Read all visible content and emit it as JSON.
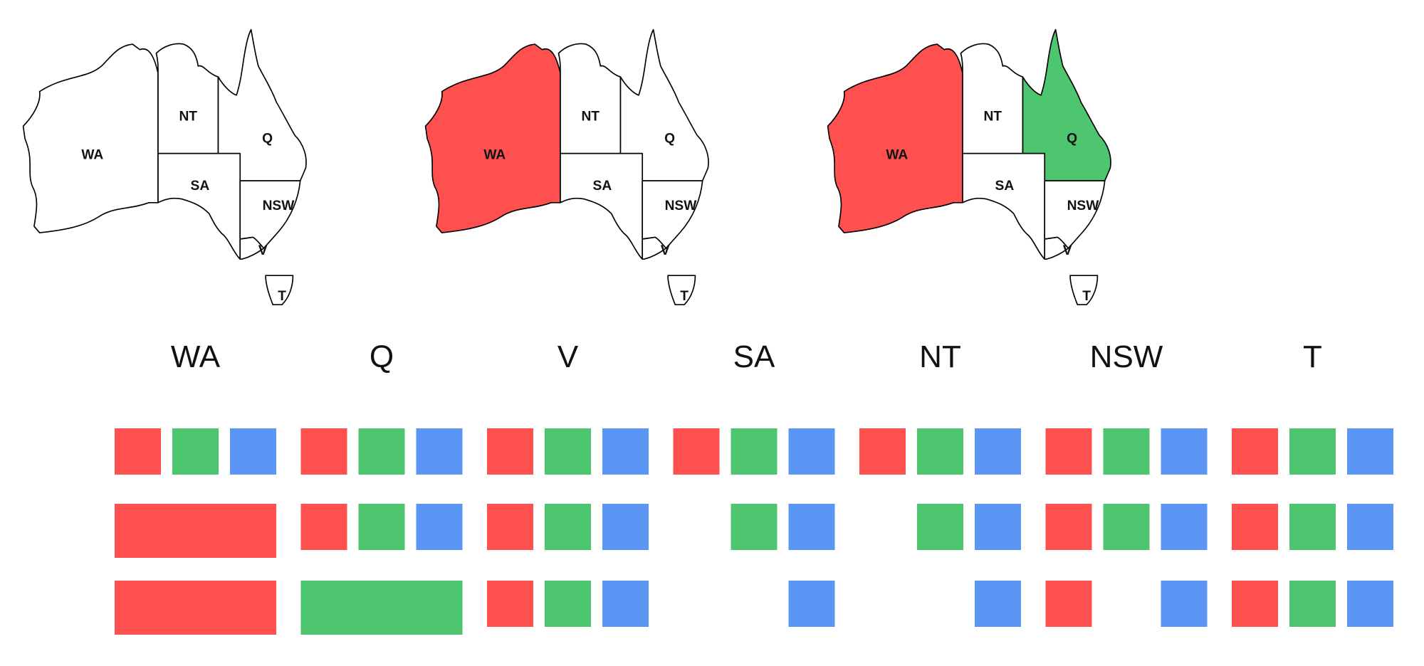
{
  "colors": {
    "red": "#ff5050",
    "green": "#4dc66f",
    "blue": "#5b96f5",
    "empty": "#ffffff",
    "outline": "#000000"
  },
  "states": [
    {
      "id": "WA",
      "label": "WA"
    },
    {
      "id": "NT",
      "label": "NT"
    },
    {
      "id": "Q",
      "label": "Q"
    },
    {
      "id": "SA",
      "label": "SA"
    },
    {
      "id": "NSW",
      "label": "NSW"
    },
    {
      "id": "V",
      "label": "V"
    },
    {
      "id": "T",
      "label": "T"
    }
  ],
  "maps": [
    {
      "fills": {}
    },
    {
      "fills": {
        "WA": "red"
      }
    },
    {
      "fills": {
        "WA": "red",
        "Q": "green"
      }
    }
  ],
  "domain_table": {
    "columns": [
      "WA",
      "Q",
      "V",
      "SA",
      "NT",
      "NSW",
      "T"
    ],
    "rows": [
      [
        [
          "red",
          "green",
          "blue"
        ],
        [
          "red",
          "green",
          "blue"
        ],
        [
          "red",
          "green",
          "blue"
        ],
        [
          "red",
          "green",
          "blue"
        ],
        [
          "red",
          "green",
          "blue"
        ],
        [
          "red",
          "green",
          "blue"
        ],
        [
          "red",
          "green",
          "blue"
        ]
      ],
      [
        [
          "red"
        ],
        [
          "red",
          "green",
          "blue"
        ],
        [
          "red",
          "green",
          "blue"
        ],
        [
          "green",
          "blue"
        ],
        [
          "green",
          "blue"
        ],
        [
          "red",
          "green",
          "blue"
        ],
        [
          "red",
          "green",
          "blue"
        ]
      ],
      [
        [
          "red"
        ],
        [
          "green"
        ],
        [
          "red",
          "green",
          "blue"
        ],
        [
          "blue"
        ],
        [
          "blue"
        ],
        [
          "red",
          "blue"
        ],
        [
          "red",
          "green",
          "blue"
        ]
      ]
    ]
  }
}
